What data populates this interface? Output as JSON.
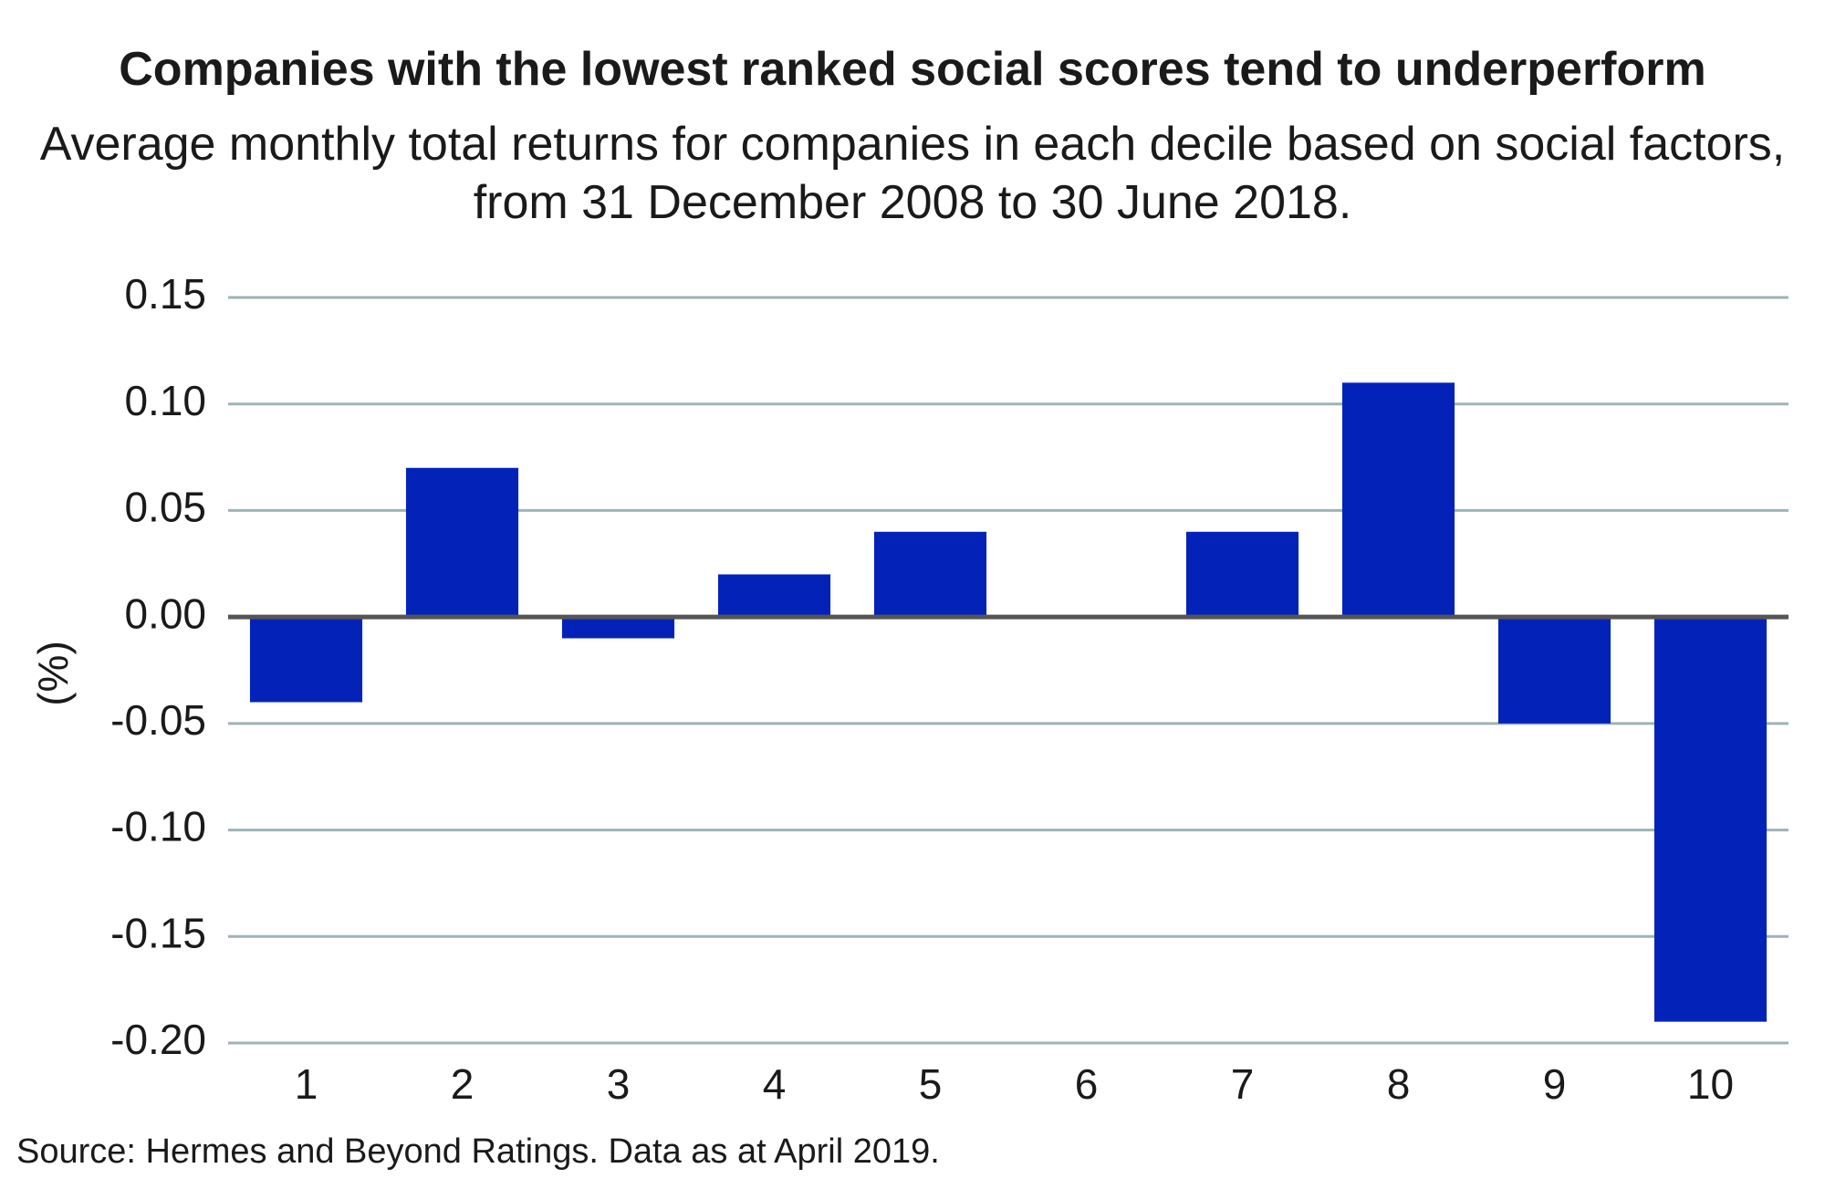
{
  "chart_data": {
    "type": "bar",
    "title": "Companies with the lowest ranked social scores tend to underperform",
    "subtitle": "Average monthly total returns for companies in each decile based on social factors, from 31 December 2008 to 30 June 2018.",
    "ylabel": "(%)",
    "xlabel": "",
    "categories": [
      "1",
      "2",
      "3",
      "4",
      "5",
      "6",
      "7",
      "8",
      "9",
      "10"
    ],
    "values": [
      -0.04,
      0.07,
      -0.01,
      0.02,
      0.04,
      0.0,
      0.04,
      0.11,
      -0.05,
      -0.19
    ],
    "yticks": [
      "0.15",
      "0.10",
      "0.05",
      "0.00",
      "-0.05",
      "-0.10",
      "-0.15",
      "-0.20"
    ],
    "ylim": [
      -0.2,
      0.15
    ],
    "grid": true,
    "legend": "none",
    "colors": {
      "bar": "#0323b8",
      "grid": "#9fb3b6",
      "zero_line": "#555555"
    }
  },
  "footer": {
    "source": "Source: Hermes and Beyond Ratings. Data as at April 2019."
  }
}
